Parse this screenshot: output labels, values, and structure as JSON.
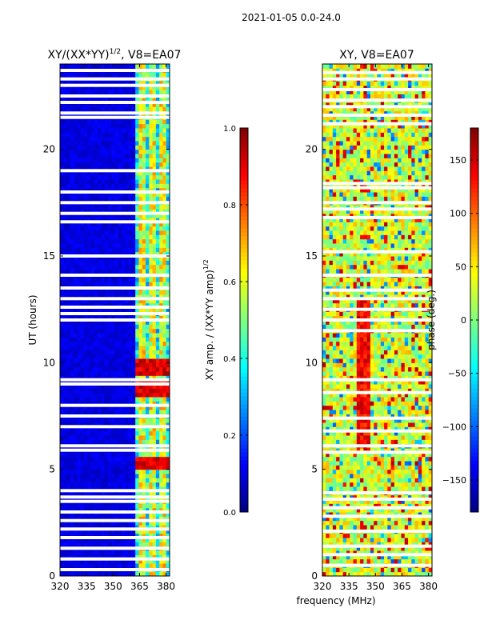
{
  "figure": {
    "suptitle": "2021-01-05 0.0-24.0",
    "xlabel": "frequency (MHz)"
  },
  "chart_data": [
    {
      "type": "heatmap",
      "title_main": "XY/(XX*YY)",
      "title_sup": "1/2",
      "title_tail": ", V8=EA07",
      "ylabel": "UT (hours)",
      "xlim": [
        320,
        382
      ],
      "ylim": [
        0,
        24
      ],
      "xticks": [
        320,
        335,
        350,
        365,
        380
      ],
      "yticks": [
        0,
        5,
        10,
        15,
        20
      ],
      "colorbar": {
        "label_main": "XY amp. / (XX*YY amp)",
        "label_sup": "1/2",
        "range": [
          0.0,
          1.0
        ],
        "ticks": [
          "0.0",
          "0.2",
          "0.4",
          "0.6",
          "0.8",
          "1.0"
        ],
        "colormap": "jet"
      },
      "bright_band_mhz": [
        362,
        382
      ],
      "strong_features_ut_hours": [
        5.3,
        8.8,
        9.8
      ],
      "white_gaps_ut_hours": [
        0.3,
        0.8,
        1.3,
        1.8,
        2.2,
        2.6,
        3.0,
        3.5,
        3.7,
        4.0,
        5.9,
        6.1,
        7.0,
        7.5,
        8.0,
        9.0,
        9.2,
        12.0,
        12.3,
        12.6,
        13.0,
        13.5,
        14.1,
        15.0,
        16.6,
        17.0,
        17.5,
        18.0,
        19.0,
        21.5,
        21.7,
        22.2,
        22.5,
        23.0,
        23.3,
        23.7
      ]
    },
    {
      "type": "heatmap",
      "title": "XY, V8=EA07",
      "xlim": [
        320,
        382
      ],
      "ylim": [
        0,
        24
      ],
      "xticks": [
        320,
        335,
        350,
        365,
        380
      ],
      "yticks": [
        0,
        5,
        10,
        15,
        20
      ],
      "colorbar": {
        "label": "phase (deg.)",
        "range": [
          -180,
          180
        ],
        "ticks": [
          "−150",
          "−100",
          "−50",
          "0",
          "50",
          "100",
          "150"
        ],
        "tick_values": [
          -150,
          -100,
          -50,
          0,
          50,
          100,
          150
        ],
        "colormap": "jet"
      },
      "dominant_phase_deg": 30,
      "white_gaps_ut_hours": [
        0.5,
        1.0,
        1.4,
        2.1,
        2.8,
        3.2,
        3.6,
        3.9,
        5.8,
        6.1,
        6.8,
        7.4,
        8.6,
        9.2,
        11.5,
        12.0,
        12.5,
        13.0,
        13.4,
        14.1,
        15.2,
        16.8,
        17.2,
        17.5,
        18.2,
        18.4,
        21.2,
        21.6,
        22.0,
        22.3,
        22.8,
        23.3,
        23.6
      ]
    }
  ]
}
